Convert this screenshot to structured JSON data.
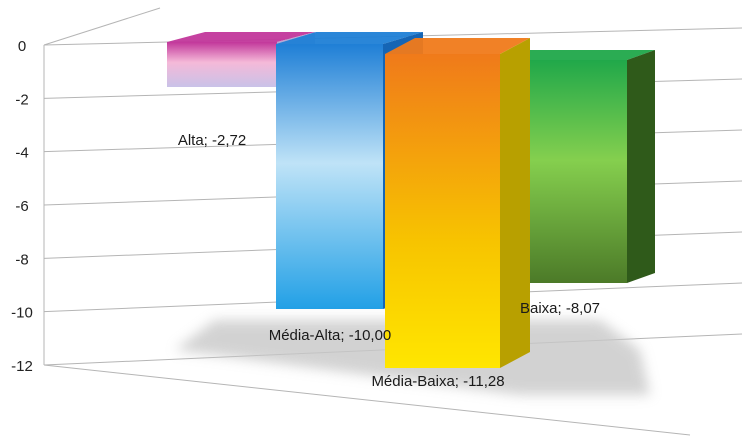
{
  "chart_data": {
    "type": "bar",
    "style": "3d-clustered-column",
    "categories": [
      "Alta",
      "Média-Alta",
      "Média-Baixa",
      "Baixa"
    ],
    "values": [
      -2.72,
      -10.0,
      -11.28,
      -8.07
    ],
    "data_labels": [
      "Alta; -2,72",
      "Média-Alta; -10,00",
      "Média-Baixa; -11,28",
      "Baixa; -8,07"
    ],
    "y_ticks": [
      "0",
      "-2",
      "-4",
      "-6",
      "-8",
      "-10",
      "-12"
    ],
    "y_tick_values": [
      0,
      -2,
      -4,
      -6,
      -8,
      -10,
      -12
    ],
    "ylim": [
      -12,
      0
    ],
    "grid": true,
    "legend": "none",
    "title": "",
    "xlabel": "",
    "ylabel": "",
    "colors": {
      "Alta": [
        "#c2379b",
        "#f5b9d8",
        "#c9c2e8"
      ],
      "Média-Alta": [
        "#1f7fd6",
        "#bfe3f7",
        "#22a0e6"
      ],
      "Média-Baixa": [
        "#f07a1a",
        "#f7c400",
        "#ffe600"
      ],
      "Baixa": [
        "#20a84a",
        "#85cf4e",
        "#4c7a28"
      ],
      "grid": "#b5b5b5",
      "shadow": "#c8c8c8"
    }
  }
}
